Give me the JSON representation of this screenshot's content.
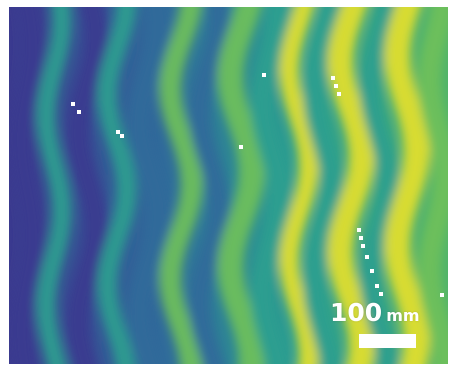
{
  "scale_bar": {
    "value": "100",
    "unit": "mm"
  },
  "colors": {
    "dark_purple": "#3b3a8f",
    "blue": "#2f6a9a",
    "teal": "#2a9e8f",
    "green": "#6fc05a",
    "yellow": "#e4e02a",
    "marker": "#ffffff"
  }
}
